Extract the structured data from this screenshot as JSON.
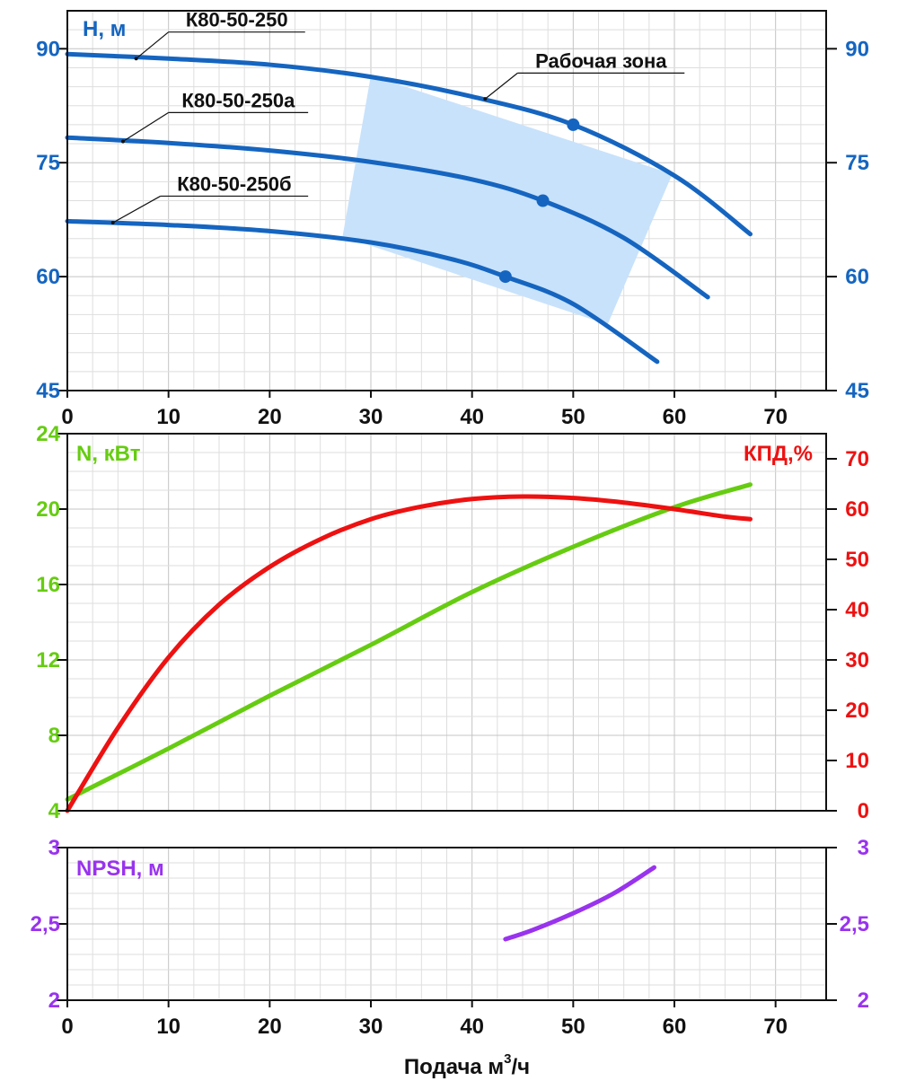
{
  "colors": {
    "head": "#1565c0",
    "power": "#66cc11",
    "efficiency": "#ee1111",
    "npsh": "#9933ee",
    "zone": "#c8e2fb",
    "grid_minor": "#dedede",
    "grid_major": "#c4c4c4",
    "frame": "#111111",
    "text": "#111111"
  },
  "chart_data": [
    {
      "type": "line",
      "panel": "head",
      "title": "H, м",
      "xlim": [
        0,
        75
      ],
      "ylim": [
        45,
        95
      ],
      "x_ticks": [
        "0",
        "10",
        "20",
        "30",
        "40",
        "50",
        "60",
        "70"
      ],
      "x_tick_values": [
        0,
        10,
        20,
        30,
        40,
        50,
        60,
        70
      ],
      "y_ticks": [
        "45",
        "60",
        "75",
        "90"
      ],
      "y_tick_values": [
        45,
        60,
        75,
        90
      ],
      "right_y_ticks": [
        "45",
        "60",
        "75",
        "90"
      ],
      "grid": true,
      "series": [
        {
          "name": "К80-50-250",
          "x": [
            0,
            10,
            20,
            30,
            40,
            50,
            60,
            67.5
          ],
          "y": [
            89.3,
            88.7,
            87.9,
            86.3,
            83.7,
            80,
            73.3,
            65.6
          ],
          "marker": {
            "x": 50,
            "y": 80
          }
        },
        {
          "name": "К80-50-250а",
          "x": [
            0,
            10,
            20,
            30,
            40,
            47,
            55,
            63.3
          ],
          "y": [
            78.3,
            77.6,
            76.6,
            75.1,
            72.8,
            70,
            65.1,
            57.3
          ],
          "marker": {
            "x": 47,
            "y": 70
          }
        },
        {
          "name": "К80-50-250б",
          "x": [
            0,
            10,
            20,
            30,
            38,
            43.3,
            50,
            58.3
          ],
          "y": [
            67.3,
            66.8,
            66,
            64.5,
            62.3,
            60,
            56.4,
            48.8
          ],
          "marker": {
            "x": 43.3,
            "y": 60
          }
        }
      ],
      "zone": {
        "label": "Рабочая зона",
        "polygon": [
          [
            27.2,
            65.3
          ],
          [
            30,
            86.5
          ],
          [
            59.8,
            73.5
          ],
          [
            53.4,
            53.7
          ]
        ]
      },
      "annotations": [
        {
          "text": "К80-50-250",
          "target": [
            6.8,
            88.7
          ],
          "label_at": [
            10,
            92.2
          ],
          "label_end": [
            23.5,
            92.2
          ]
        },
        {
          "text": "К80-50-250а",
          "target": [
            5.5,
            77.8
          ],
          "label_at": [
            10,
            81.6
          ],
          "label_end": [
            23.8,
            81.6
          ]
        },
        {
          "text": "К80-50-250б",
          "target": [
            4.5,
            67.1
          ],
          "label_at": [
            9.2,
            70.6
          ],
          "label_end": [
            23.8,
            70.6
          ]
        },
        {
          "text": "Рабочая зона",
          "target": [
            41.3,
            83.4
          ],
          "label_at": [
            44.5,
            86.8
          ],
          "label_end": [
            61,
            86.8
          ]
        }
      ]
    },
    {
      "type": "line",
      "panel": "power_efficiency",
      "left_title": "N, кВт",
      "right_title": "КПД,%",
      "xlim": [
        0,
        75
      ],
      "ylim": [
        4,
        24
      ],
      "right_ylim": [
        0,
        75
      ],
      "y_ticks": [
        "4",
        "8",
        "12",
        "16",
        "20",
        "24"
      ],
      "y_tick_values": [
        4,
        8,
        12,
        16,
        20,
        24
      ],
      "right_y_ticks": [
        "0",
        "10",
        "20",
        "30",
        "40",
        "50",
        "60",
        "70"
      ],
      "right_y_tick_values": [
        0,
        10,
        20,
        30,
        40,
        50,
        60,
        70
      ],
      "grid": true,
      "series": [
        {
          "name": "N",
          "axis": "left",
          "x": [
            0,
            10,
            20,
            30,
            40,
            50,
            60,
            67.5
          ],
          "y": [
            4.6,
            7.3,
            10.1,
            12.8,
            15.6,
            18.0,
            20.1,
            21.3
          ]
        },
        {
          "name": "КПД",
          "axis": "right",
          "x": [
            0,
            5,
            10,
            15,
            20,
            25,
            30,
            35,
            40,
            45,
            50,
            55,
            60,
            65,
            67.5
          ],
          "y": [
            0,
            16.5,
            30.5,
            41,
            48.5,
            54,
            58,
            60.5,
            62,
            62.5,
            62.2,
            61.3,
            60,
            58.5,
            58
          ]
        }
      ]
    },
    {
      "type": "line",
      "panel": "npsh",
      "title": "NPSH, м",
      "xlim": [
        0,
        75
      ],
      "ylim": [
        2,
        3
      ],
      "y_ticks": [
        "2",
        "2,5",
        "3"
      ],
      "y_tick_values": [
        2,
        2.5,
        3
      ],
      "right_y_ticks": [
        "2",
        "2,5",
        "3"
      ],
      "x_ticks": [
        "0",
        "10",
        "20",
        "30",
        "40",
        "50",
        "60",
        "70"
      ],
      "x_tick_values": [
        0,
        10,
        20,
        30,
        40,
        50,
        60,
        70
      ],
      "xlabel_base": "Подача м",
      "xlabel_sup": "3",
      "xlabel_tail": "/ч",
      "grid": true,
      "series": [
        {
          "name": "NPSH",
          "x": [
            43.3,
            46,
            50,
            54,
            58
          ],
          "y": [
            2.4,
            2.46,
            2.57,
            2.7,
            2.87
          ]
        }
      ]
    }
  ]
}
